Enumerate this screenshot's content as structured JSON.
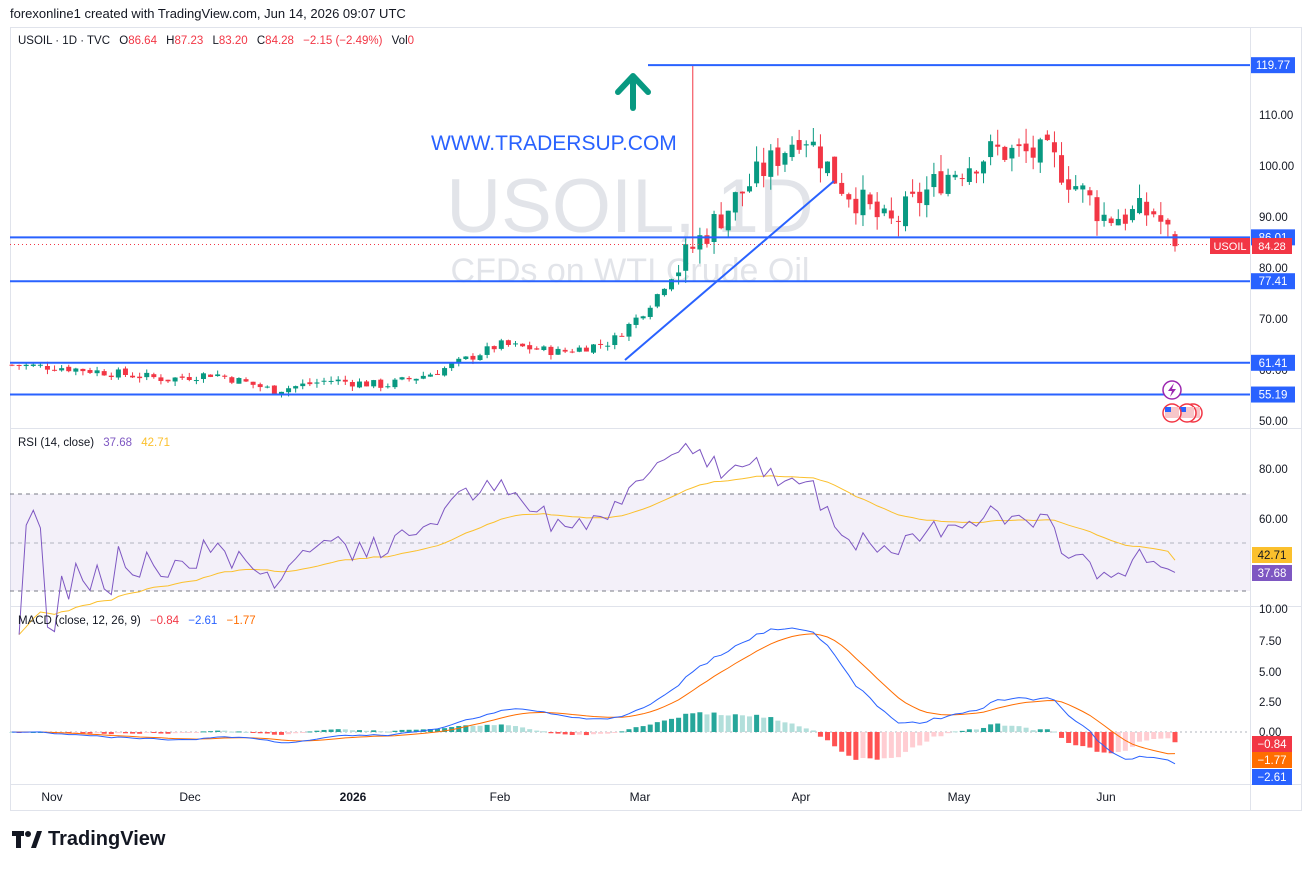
{
  "header": {
    "text": "forexonline1 created with TradingView.com, Jun 14, 2026 09:07 UTC"
  },
  "legend": {
    "symbol": "USOIL · 1D · TVC",
    "o_label": "O",
    "o": "86.64",
    "h_label": "H",
    "h": "87.23",
    "l_label": "L",
    "l": "83.20",
    "c_label": "C",
    "c": "84.28",
    "change": "−2.15 (−2.49%)",
    "vol_label": "Vol",
    "vol": "0"
  },
  "watermark": {
    "symbol": "USOIL, 1D",
    "description": "CFDs on WTI Crude Oil"
  },
  "annotation": {
    "text": "WWW.TRADERSUP.COM",
    "color": "#2962ff"
  },
  "colors": {
    "up": "#089981",
    "down": "#f23645",
    "level": "#2962ff",
    "rsi": "#7e57c2",
    "rsi_ma": "#fbc02d",
    "macd": "#2962ff",
    "signal": "#ff6d00"
  },
  "price_axis": {
    "ticks": [
      "110.00",
      "100.00",
      "90.00",
      "80.00",
      "70.00",
      "60.00",
      "50.00"
    ]
  },
  "levels": [
    "119.77",
    "86.01",
    "77.41",
    "61.41",
    "55.19"
  ],
  "last_price": {
    "symbol": "USOIL",
    "value": "84.28"
  },
  "rsi": {
    "legend_name": "RSI (14, close)",
    "value": "37.68",
    "ma": "42.71",
    "ticks": [
      "80.00",
      "60.00"
    ]
  },
  "macd": {
    "legend_name": "MACD (close, 12, 26, 9)",
    "hist": "−0.84",
    "macd": "−2.61",
    "signal": "−1.77",
    "ticks": [
      "10.00",
      "7.50",
      "5.00",
      "2.50",
      "0.00"
    ],
    "labels": [
      "−0.84",
      "−1.77",
      "−2.61"
    ]
  },
  "time_axis": {
    "labels": [
      "Nov",
      "Dec",
      "2026",
      "Feb",
      "Mar",
      "Apr",
      "May",
      "Jun"
    ]
  },
  "brand": {
    "name": "TradingView"
  },
  "chart_data": {
    "type": "candlestick",
    "symbol": "USOIL",
    "timeframe": "1D",
    "ylim": [
      48,
      122
    ],
    "close_points": [
      {
        "x": "2025-10-24",
        "y": 61.0
      },
      {
        "x": "2025-11-03",
        "y": 60.5
      },
      {
        "x": "2025-11-14",
        "y": 59.3
      },
      {
        "x": "2025-11-24",
        "y": 58.2
      },
      {
        "x": "2025-12-03",
        "y": 59.3
      },
      {
        "x": "2025-12-15",
        "y": 56.0
      },
      {
        "x": "2025-12-26",
        "y": 58.0
      },
      {
        "x": "2026-01-06",
        "y": 57.0
      },
      {
        "x": "2026-01-16",
        "y": 59.5
      },
      {
        "x": "2026-01-29",
        "y": 65.0
      },
      {
        "x": "2026-02-10",
        "y": 63.5
      },
      {
        "x": "2026-02-20",
        "y": 65.5
      },
      {
        "x": "2026-02-27",
        "y": 72.0
      },
      {
        "x": "2026-03-09",
        "y": 85.0
      },
      {
        "x": "2026-03-19",
        "y": 96.0
      },
      {
        "x": "2026-03-30",
        "y": 107.0
      },
      {
        "x": "2026-04-06",
        "y": 97.0
      },
      {
        "x": "2026-04-16",
        "y": 88.0
      },
      {
        "x": "2026-04-27",
        "y": 98.0
      },
      {
        "x": "2026-05-07",
        "y": 103.0
      },
      {
        "x": "2026-05-18",
        "y": 102.0
      },
      {
        "x": "2026-05-29",
        "y": 90.0
      },
      {
        "x": "2026-06-08",
        "y": 91.0
      },
      {
        "x": "2026-06-12",
        "y": 84.28
      }
    ],
    "horizontal_levels": [
      119.77,
      86.01,
      77.41,
      61.41,
      55.19
    ],
    "trendline": [
      {
        "x": "2026-02-25",
        "y": 61.5
      },
      {
        "x": "2026-04-07",
        "y": 97.0
      }
    ],
    "rsi": {
      "period": 14,
      "last": 37.68,
      "ma_last": 42.71,
      "bands": [
        70,
        30
      ]
    },
    "macd": {
      "fast": 12,
      "slow": 26,
      "signal": 9,
      "macd_last": -2.61,
      "signal_last": -1.77,
      "hist_last": -0.84
    }
  }
}
